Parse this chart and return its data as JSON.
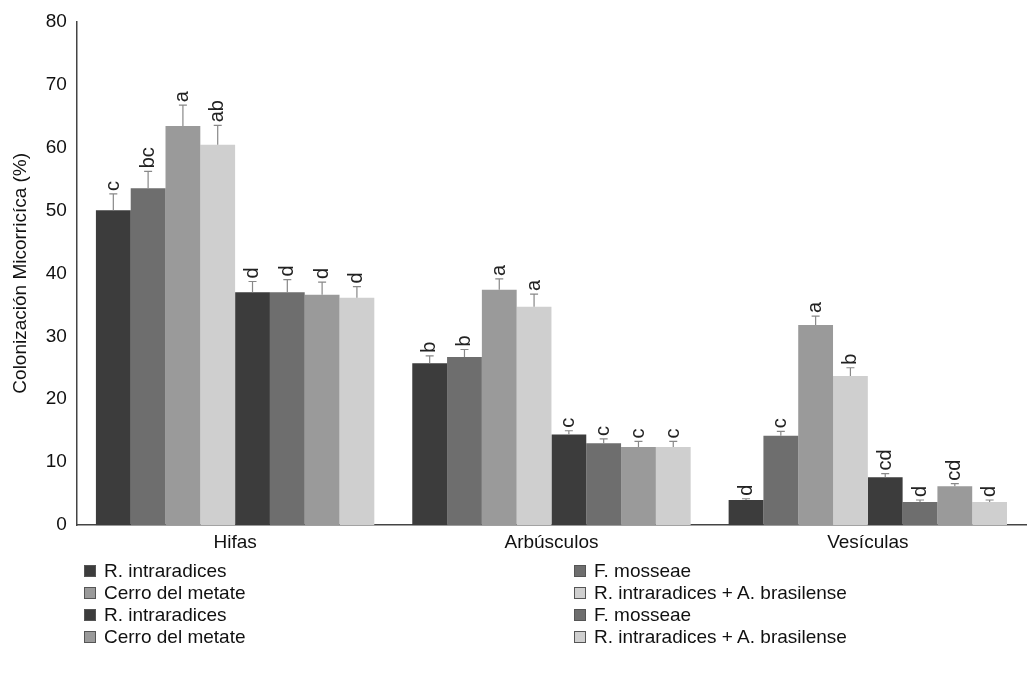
{
  "chart_data": {
    "type": "bar",
    "ylabel": "Colonización Micorricíca (%)",
    "categories": [
      "Hifas",
      "Arbúsculos",
      "Vesículas"
    ],
    "series": [
      {
        "name": "R. intraradices",
        "color": "#3c3c3c",
        "values": [
          50.0,
          25.7,
          4.0
        ],
        "errors": [
          [
            50.0,
            52.6
          ],
          [
            25.7,
            26.9
          ],
          [
            4.0,
            4.2
          ]
        ],
        "value_labels": [
          "c",
          "b",
          "d"
        ]
      },
      {
        "name": "F. mosseae",
        "color": "#6e6e6e",
        "values": [
          53.5,
          26.7,
          14.2
        ],
        "errors": [
          [
            53.5,
            56.2
          ],
          [
            26.7,
            27.9
          ],
          [
            14.2,
            14.9
          ]
        ],
        "value_labels": [
          "bc",
          "b",
          "c"
        ]
      },
      {
        "name": "Cerro del metate",
        "color": "#9a9a9a",
        "values": [
          63.4,
          37.4,
          31.8
        ],
        "errors": [
          [
            63.4,
            66.7
          ],
          [
            37.4,
            39.1
          ],
          [
            31.8,
            33.2
          ]
        ],
        "value_labels": [
          "a",
          "a",
          "a"
        ]
      },
      {
        "name": "R. intraradices + A. brasilense",
        "color": "#cfcfcf",
        "values": [
          60.4,
          34.7,
          23.7
        ],
        "errors": [
          [
            60.4,
            63.5
          ],
          [
            34.7,
            36.7
          ],
          [
            23.7,
            25.0
          ]
        ],
        "value_labels": [
          "ab",
          "a",
          "b"
        ]
      },
      {
        "name": "R. intraradices",
        "color": "#3c3c3c",
        "values": [
          37.0,
          14.4,
          7.6
        ],
        "errors": [
          [
            37.0,
            38.7
          ],
          [
            14.4,
            15.0
          ],
          [
            7.6,
            8.2
          ]
        ],
        "value_labels": [
          "d",
          "c",
          "cd"
        ]
      },
      {
        "name": "F. mosseae",
        "color": "#6e6e6e",
        "values": [
          37.0,
          13.0,
          3.7
        ],
        "errors": [
          [
            37.0,
            39.0
          ],
          [
            13.0,
            13.7
          ],
          [
            3.7,
            4.0
          ]
        ],
        "value_labels": [
          "d",
          "c",
          "d"
        ]
      },
      {
        "name": "Cerro del metate",
        "color": "#9a9a9a",
        "values": [
          36.6,
          12.4,
          6.2
        ],
        "errors": [
          [
            36.6,
            38.6
          ],
          [
            12.4,
            13.3
          ],
          [
            6.2,
            6.6
          ]
        ],
        "value_labels": [
          "d",
          "c",
          "cd"
        ]
      },
      {
        "name": "R. intraradices + A. brasilense",
        "color": "#cfcfcf",
        "values": [
          36.1,
          12.4,
          3.7
        ],
        "errors": [
          [
            36.1,
            37.9
          ],
          [
            12.4,
            13.3
          ],
          [
            3.7,
            4.0
          ]
        ],
        "value_labels": [
          "d",
          "c",
          "d"
        ]
      }
    ],
    "ylim": [
      0,
      80
    ],
    "yticks": [
      0,
      10,
      20,
      30,
      40,
      50,
      60,
      70,
      80
    ],
    "grid": false,
    "legend": "bottom"
  }
}
